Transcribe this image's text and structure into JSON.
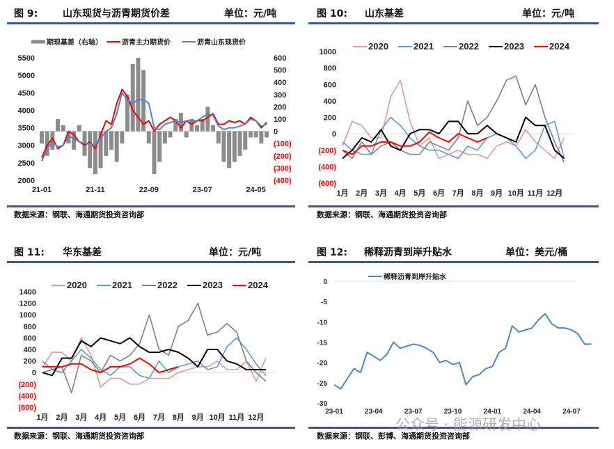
{
  "panels": [
    {
      "fig": "图  9:",
      "title": "山东现货与沥青期货价差",
      "unit": "单位：元/吨",
      "source": "数据来源：钢联、海通期货投资咨询部"
    },
    {
      "fig": "图  10:",
      "title": "山东基差",
      "unit": "单位：元/吨",
      "source": "数据来源：钢联、海通期货投资咨询部"
    },
    {
      "fig": "图  11:",
      "title": "华东基差",
      "unit": "单位：元/吨",
      "source": "数据来源：钢联、海通期货投资咨询部"
    },
    {
      "fig": "图  12:",
      "title": "稀释沥青到岸升贴水",
      "unit": "单位：美元/桶",
      "source": "数据来源：钢联、彭博、海通期货投资咨询部"
    }
  ],
  "watermark": "公众号 · 能源研发中心",
  "colors": {
    "rule": "#3a5a8c",
    "2020": "#e09a9a",
    "2021": "#5b9bd5",
    "2022": "#808080",
    "2023": "#000000",
    "2024": "#ff0000",
    "basis": "#8c8c8c",
    "futures": "#ff0000",
    "spot": "#4a86c8"
  },
  "chart_data": [
    {
      "type": "line",
      "title": "山东现货与沥青期货价差",
      "xticks": [
        "21-01",
        "21-11",
        "22-09",
        "23-07",
        "24-05"
      ],
      "yticks_left": [
        "5500",
        "5000",
        "4500",
        "4000",
        "3500",
        "3000",
        "2500",
        "2000"
      ],
      "yticks_right": [
        "600",
        "500",
        "400",
        "300",
        "200",
        "100",
        "0",
        "(100)",
        "(200)",
        "(300)",
        "(400)"
      ],
      "ylim": [
        2000,
        5500
      ],
      "ylim_right": [
        -400,
        600
      ],
      "series": [
        {
          "name": "期现基差（右轴）",
          "axis": "right",
          "type": "bar",
          "values": [
            -100,
            -200,
            -150,
            100,
            50,
            -100,
            -150,
            50,
            -200,
            -300,
            -350,
            -300,
            -200,
            -150,
            -250,
            -100,
            300,
            550,
            600,
            500,
            -100,
            -350,
            -250,
            -100,
            -50,
            100,
            150,
            -50,
            100,
            50,
            100,
            200,
            50,
            -100,
            -250,
            -300,
            -250,
            -200,
            -150,
            -50,
            -50,
            -100,
            -50
          ]
        },
        {
          "name": "沥青主力期货价",
          "values": [
            2650,
            3000,
            3200,
            2900,
            3000,
            3400,
            3300,
            3100,
            3000,
            3100,
            2900,
            3300,
            3700,
            3600,
            4200,
            4600,
            4400,
            4000,
            3800,
            3600,
            3700,
            3400,
            3600,
            3700,
            3800,
            3700,
            3500,
            3700,
            3600,
            3700,
            3700,
            3800,
            3900,
            3600,
            3600,
            3700,
            3650,
            3700,
            3600,
            3800,
            3700,
            3500,
            3650
          ]
        },
        {
          "name": "沥青山东现货价",
          "values": [
            2550,
            2900,
            3100,
            2950,
            3000,
            3250,
            3200,
            3100,
            3050,
            3050,
            3000,
            3200,
            3400,
            3500,
            3900,
            4500,
            4300,
            4200,
            4300,
            4300,
            4200,
            3500,
            3450,
            3600,
            3650,
            3700,
            3650,
            3700,
            3700,
            3700,
            3800,
            3900,
            3850,
            3550,
            3450,
            3500,
            3500,
            3550,
            3600,
            3750,
            3700,
            3550,
            3600
          ]
        }
      ]
    },
    {
      "type": "line",
      "title": "山东基差",
      "xticks": [
        "1月",
        "2月",
        "3月",
        "4月",
        "5月",
        "6月",
        "7月",
        "8月",
        "9月",
        "10月",
        "11月",
        "12月"
      ],
      "yticks": [
        "1000",
        "800",
        "600",
        "400",
        "200",
        "0",
        "(200)",
        "(400)",
        "(600)"
      ],
      "ylim": [
        -600,
        1000
      ],
      "series": [
        {
          "name": "2020",
          "values": [
            -150,
            150,
            100,
            -50,
            -50,
            450,
            650,
            150,
            -150,
            -50,
            -300,
            -250,
            -200,
            -250,
            -250,
            -300,
            -150,
            -100,
            -150,
            50,
            -100,
            -200,
            -300,
            -50
          ]
        },
        {
          "name": "2021",
          "values": [
            -100,
            -200,
            -250,
            -250,
            50,
            200,
            100,
            -50,
            -150,
            -200,
            -200,
            -250,
            -300,
            -150,
            -200,
            -50,
            0,
            -50,
            -150,
            -300,
            -200,
            100,
            150,
            -300
          ]
        },
        {
          "name": "2022",
          "values": [
            -200,
            -300,
            -100,
            -250,
            -150,
            -100,
            -200,
            -250,
            -250,
            -100,
            -150,
            -200,
            -50,
            400,
            100,
            200,
            400,
            650,
            700,
            350,
            600,
            200,
            -100,
            -350
          ]
        },
        {
          "name": "2023",
          "values": [
            -300,
            -200,
            -50,
            -100,
            50,
            -150,
            -200,
            0,
            50,
            50,
            0,
            150,
            150,
            0,
            0,
            100,
            0,
            -50,
            -100,
            200,
            100,
            100,
            -200,
            -300
          ]
        },
        {
          "name": "2024",
          "values": [
            -200,
            -250,
            -150,
            -150,
            -100,
            -100,
            -150,
            -150,
            -100,
            20,
            -50,
            -100,
            0,
            -50,
            -100,
            -50
          ]
        }
      ]
    },
    {
      "type": "line",
      "title": "华东基差",
      "xticks": [
        "1月",
        "2月",
        "3月",
        "4月",
        "5月",
        "6月",
        "7月",
        "8月",
        "9月",
        "10月",
        "11月",
        "12月"
      ],
      "yticks": [
        "1400",
        "1200",
        "1000",
        "800",
        "600",
        "400",
        "200",
        "0",
        "(200)",
        "(400)",
        "(600)"
      ],
      "ylim": [
        -600,
        1400
      ],
      "series": [
        {
          "name": "2020",
          "values": [
            100,
            350,
            350,
            200,
            600,
            300,
            -250,
            -100,
            -100,
            -200,
            -200,
            -100,
            -100,
            -100,
            0,
            50,
            100,
            100,
            200,
            50,
            50,
            200,
            -150,
            250
          ]
        },
        {
          "name": "2021",
          "values": [
            200,
            50,
            0,
            200,
            400,
            250,
            50,
            -50,
            100,
            100,
            -50,
            -100,
            200,
            0,
            100,
            150,
            200,
            50,
            100,
            450,
            600,
            400,
            150,
            -50
          ]
        },
        {
          "name": "2022",
          "values": [
            0,
            50,
            100,
            -350,
            300,
            200,
            0,
            300,
            200,
            300,
            500,
            1000,
            400,
            300,
            800,
            900,
            1200,
            650,
            700,
            850,
            700,
            200,
            0,
            -150
          ]
        },
        {
          "name": "2023",
          "values": [
            0,
            -50,
            250,
            250,
            550,
            450,
            600,
            550,
            500,
            600,
            450,
            350,
            350,
            400,
            350,
            250,
            100,
            400,
            400,
            200,
            150,
            50,
            50,
            50
          ]
        },
        {
          "name": "2024",
          "values": [
            100,
            100,
            100,
            150,
            150,
            50,
            0,
            100,
            100,
            150,
            250,
            150,
            0,
            50,
            100
          ]
        }
      ]
    },
    {
      "type": "line",
      "title": "稀释沥青到岸升贴水",
      "xticks": [
        "23-01",
        "23-04",
        "23-07",
        "23-10",
        "24-01",
        "24-04",
        "24-07"
      ],
      "yticks": [
        "0",
        "-5",
        "-10",
        "-15",
        "-20",
        "-25",
        "-30"
      ],
      "ylim": [
        -30,
        0
      ],
      "series": [
        {
          "name": "稀释沥青到岸升贴水",
          "values": [
            -25.5,
            -26.5,
            -24,
            -21.5,
            -22.5,
            -17.5,
            -18.5,
            -19.5,
            -18,
            -15,
            -16.5,
            -16,
            -15.5,
            -15.8,
            -16.5,
            -17.5,
            -20,
            -19.5,
            -20.5,
            -20,
            -25.5,
            -23.5,
            -23,
            -21.5,
            -21,
            -17.5,
            -16.5,
            -11,
            -12.5,
            -12,
            -11.5,
            -9.5,
            -8,
            -10.5,
            -11.5,
            -11.5,
            -12,
            -13,
            -15.5,
            -15.5
          ]
        }
      ]
    }
  ]
}
